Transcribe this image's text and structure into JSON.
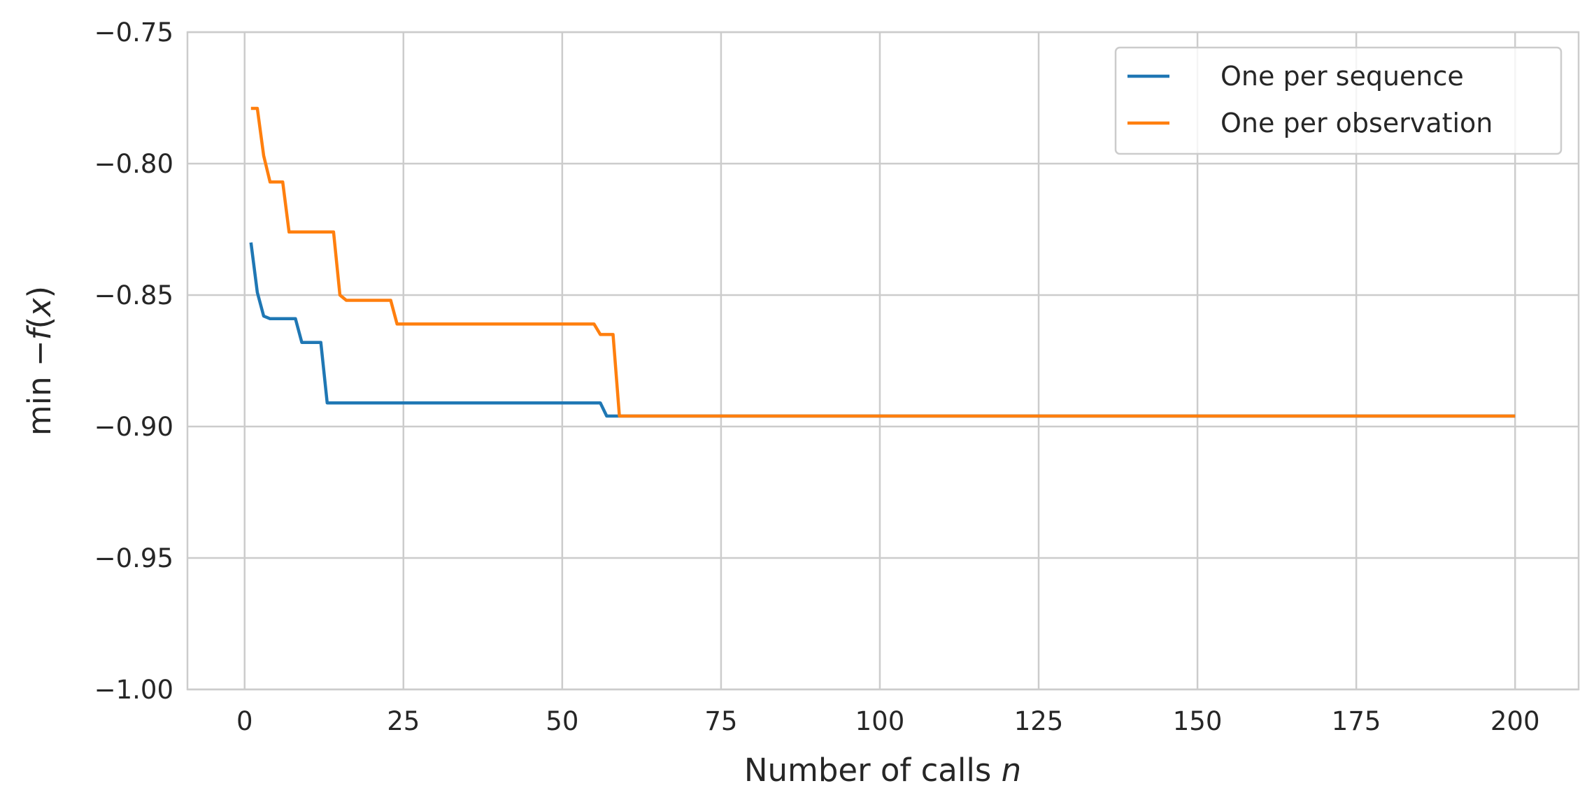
{
  "chart_data": {
    "type": "line",
    "xlabel_main": "Number of calls ",
    "xlabel_var": "n",
    "ylabel_main": "min ",
    "ylabel_minus": "−",
    "ylabel_f": "f",
    "ylabel_open": "(",
    "ylabel_x": "x",
    "ylabel_close": ")",
    "xlim": [
      -9,
      210
    ],
    "ylim": [
      -1.0,
      -0.75
    ],
    "xticks": [
      0,
      25,
      50,
      75,
      100,
      125,
      150,
      175,
      200
    ],
    "xtick_labels": [
      "0",
      "25",
      "50",
      "75",
      "100",
      "125",
      "150",
      "175",
      "200"
    ],
    "yticks": [
      -1.0,
      -0.95,
      -0.9,
      -0.85,
      -0.8,
      -0.75
    ],
    "ytick_labels": [
      "−1.00",
      "−0.95",
      "−0.90",
      "−0.85",
      "−0.80",
      "−0.75"
    ],
    "grid": true,
    "legend_position": "top-right",
    "series": [
      {
        "name": "One per sequence",
        "color": "#1f77b4",
        "x": [
          1,
          2,
          3,
          4,
          5,
          6,
          7,
          8,
          9,
          10,
          11,
          12,
          13,
          14,
          20,
          30,
          40,
          50,
          55,
          56,
          57,
          58,
          59,
          60,
          100,
          150,
          200
        ],
        "y": [
          -0.83,
          -0.849,
          -0.858,
          -0.859,
          -0.859,
          -0.859,
          -0.859,
          -0.859,
          -0.868,
          -0.868,
          -0.868,
          -0.868,
          -0.891,
          -0.891,
          -0.891,
          -0.891,
          -0.891,
          -0.891,
          -0.891,
          -0.891,
          -0.896,
          -0.896,
          -0.896,
          -0.896,
          -0.896,
          -0.896,
          -0.896
        ]
      },
      {
        "name": "One per observation",
        "color": "#ff7f0e",
        "x": [
          1,
          2,
          3,
          4,
          5,
          6,
          7,
          8,
          10,
          12,
          14,
          15,
          16,
          18,
          20,
          22,
          23,
          24,
          30,
          40,
          50,
          55,
          56,
          57,
          58,
          59,
          60,
          100,
          150,
          200
        ],
        "y": [
          -0.779,
          -0.779,
          -0.797,
          -0.807,
          -0.807,
          -0.807,
          -0.826,
          -0.826,
          -0.826,
          -0.826,
          -0.826,
          -0.85,
          -0.852,
          -0.852,
          -0.852,
          -0.852,
          -0.852,
          -0.861,
          -0.861,
          -0.861,
          -0.861,
          -0.861,
          -0.865,
          -0.865,
          -0.865,
          -0.896,
          -0.896,
          -0.896,
          -0.896,
          -0.896
        ]
      }
    ]
  }
}
